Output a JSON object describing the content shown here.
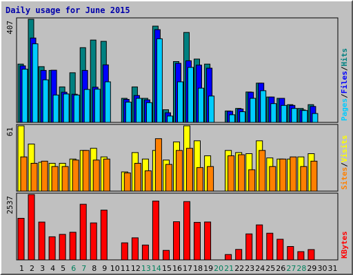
{
  "chart_data": {
    "type": "bar",
    "title": "Daily usage for June 2015",
    "days": [
      "1",
      "2",
      "3",
      "4",
      "5",
      "6",
      "7",
      "8",
      "9",
      "10",
      "11",
      "12",
      "13",
      "14",
      "15",
      "16",
      "17",
      "18",
      "19",
      "20",
      "21",
      "22",
      "23",
      "24",
      "25",
      "26",
      "27",
      "28",
      "29",
      "30",
      "31"
    ],
    "weekend_days": [
      "6",
      "7",
      "13",
      "14",
      "20",
      "21",
      "27",
      "28"
    ],
    "panels": [
      {
        "id": "hits_files_pages",
        "ymax_label": "407",
        "ymax": 407,
        "legend": [
          {
            "name": "Pages",
            "color": "#00ccff"
          },
          {
            "name": "Files",
            "color": "#0000ff"
          },
          {
            "name": "Hits",
            "color": "#008080"
          }
        ],
        "series": [
          {
            "name": "Hits",
            "color": "#008080",
            "values": [
              230,
              407,
              220,
              205,
              140,
              196,
              295,
              325,
              320,
              0,
              95,
              140,
              95,
              380,
              50,
              240,
              355,
              250,
              230,
              0,
              45,
              55,
              120,
              155,
              100,
              95,
              70,
              55,
              70,
              0,
              0
            ]
          },
          {
            "name": "Files",
            "color": "#0000ff",
            "values": [
              223,
              333,
              205,
              206,
              119,
              111,
              205,
              139,
              227,
              0,
              91,
              106,
              89,
              366,
              38,
              233,
              243,
              226,
              214,
              0,
              44,
              53,
              119,
              155,
              100,
              95,
              67,
              49,
              63,
              0,
              0
            ]
          },
          {
            "name": "Pages",
            "color": "#00ccff",
            "values": [
              210,
              310,
              168,
              108,
              112,
              108,
              130,
              131,
              160,
              0,
              80,
              95,
              78,
              330,
              25,
              160,
              217,
              135,
              104,
              0,
              30,
              42,
              95,
              125,
              74,
              67,
              55,
              47,
              35,
              0,
              0
            ]
          }
        ]
      },
      {
        "id": "visits_sites",
        "ymax_label": "61",
        "ymax": 61,
        "legend": [
          {
            "name": "Sites",
            "color": "#ff8000"
          },
          {
            "name": "Visits",
            "color": "#ffff00"
          }
        ],
        "series": [
          {
            "name": "Visits",
            "color": "#ffff00",
            "values": [
              61,
              44,
              27,
              26,
              26,
              30,
              38,
              40,
              32,
              0,
              18,
              36,
              30,
              38,
              29,
              46,
              61,
              47,
              33,
              0,
              38,
              36,
              35,
              47,
              31,
              30,
              30,
              32,
              35,
              0,
              0
            ]
          },
          {
            "name": "Sites",
            "color": "#ff8000",
            "values": [
              32,
              26,
              28,
              23,
              23,
              29,
              38,
              29,
              30,
              0,
              17,
              26,
              19,
              49,
              25,
              38,
              40,
              22,
              23,
              0,
              33,
              34,
              20,
              38,
              23,
              30,
              32,
              23,
              28,
              0,
              0
            ]
          }
        ]
      },
      {
        "id": "kbytes",
        "ymax_label": "2537",
        "ymax": 2537,
        "legend": [
          {
            "name": "KBytes",
            "color": "#ff0000"
          }
        ],
        "series": [
          {
            "name": "KBytes",
            "color": "#ff0000",
            "values": [
              1617,
              2537,
              1470,
              896,
              992,
              1073,
              2160,
              1438,
              1933,
              0,
              662,
              858,
              578,
              2286,
              368,
              1482,
              2264,
              1458,
              1471,
              0,
              208,
              405,
              1010,
              1360,
              1035,
              800,
              522,
              321,
              400,
              0,
              0
            ]
          }
        ]
      }
    ],
    "colors": {
      "background": "#c0c0c0",
      "plot_area": "#c0c0c0",
      "title": "#0000aa",
      "weekday_label": "#000000",
      "weekend_label": "#00805c"
    }
  }
}
